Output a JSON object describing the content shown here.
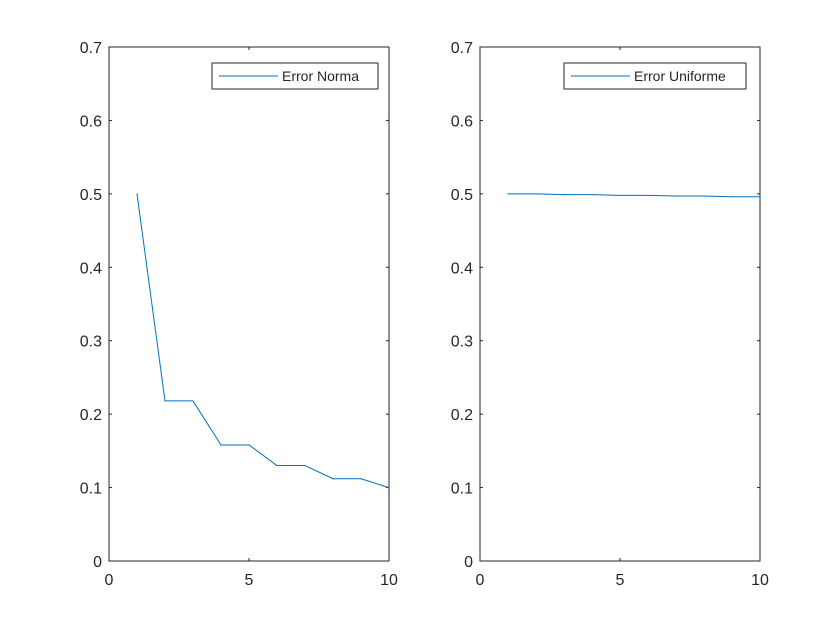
{
  "chart_data": [
    {
      "type": "line",
      "title": "",
      "xlabel": "",
      "ylabel": "",
      "xlim": [
        0,
        10
      ],
      "ylim": [
        0,
        0.7
      ],
      "xticks": [
        0,
        5,
        10
      ],
      "yticks": [
        0,
        0.1,
        0.2,
        0.3,
        0.4,
        0.5,
        0.6,
        0.7
      ],
      "grid": false,
      "legend_position": "top-right",
      "series": [
        {
          "name": "Error Norma",
          "color": "#0072BD",
          "x": [
            1,
            2,
            3,
            4,
            5,
            6,
            7,
            8,
            9,
            10
          ],
          "y": [
            0.5,
            0.218,
            0.218,
            0.158,
            0.158,
            0.13,
            0.13,
            0.112,
            0.112,
            0.1
          ]
        }
      ]
    },
    {
      "type": "line",
      "title": "",
      "xlabel": "",
      "ylabel": "",
      "xlim": [
        0,
        10
      ],
      "ylim": [
        0,
        0.7
      ],
      "xticks": [
        0,
        5,
        10
      ],
      "yticks": [
        0,
        0.1,
        0.2,
        0.3,
        0.4,
        0.5,
        0.6,
        0.7
      ],
      "grid": false,
      "legend_position": "top-right",
      "series": [
        {
          "name": "Error Uniforme",
          "color": "#0072BD",
          "x": [
            1,
            2,
            3,
            4,
            5,
            6,
            7,
            8,
            9,
            10
          ],
          "y": [
            0.5,
            0.5,
            0.499,
            0.499,
            0.498,
            0.498,
            0.497,
            0.497,
            0.496,
            0.496
          ]
        }
      ]
    }
  ]
}
